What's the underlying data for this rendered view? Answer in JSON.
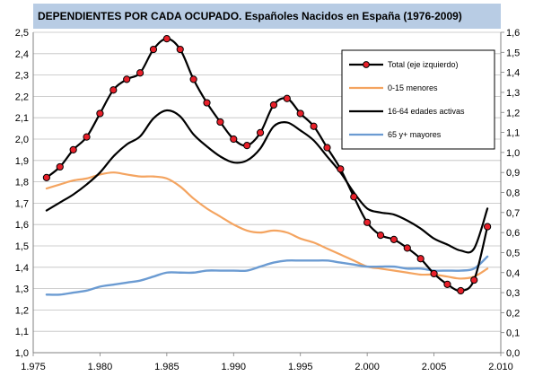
{
  "chart_data": {
    "type": "line",
    "title": "DEPENDIENTES POR CADA OCUPADO. Españoles Nacidos en España (1976-2009)",
    "colors": {
      "title_bg": "#b8cce4",
      "total": "#000000",
      "total_marker": "#e8202a",
      "menores": "#f4a460",
      "activas": "#000000",
      "mayores": "#6b9bd2"
    },
    "x_ticks": [
      "1.975",
      "1.980",
      "1.985",
      "1.990",
      "1.995",
      "2.000",
      "2.005",
      "2.010"
    ],
    "x_tick_values": [
      1975,
      1980,
      1985,
      1990,
      1995,
      2000,
      2005,
      2010
    ],
    "y_left_ticks": [
      "1,0",
      "1,1",
      "1,2",
      "1,3",
      "1,4",
      "1,5",
      "1,6",
      "1,7",
      "1,8",
      "1,9",
      "2,0",
      "2,1",
      "2,2",
      "2,3",
      "2,4",
      "2,5"
    ],
    "y_left_tick_values": [
      1.0,
      1.1,
      1.2,
      1.3,
      1.4,
      1.5,
      1.6,
      1.7,
      1.8,
      1.9,
      2.0,
      2.1,
      2.2,
      2.3,
      2.4,
      2.5
    ],
    "y_right_ticks": [
      "0,0",
      "0,1",
      "0,2",
      "0,3",
      "0,4",
      "0,5",
      "0,6",
      "0,7",
      "0,8",
      "0,9",
      "1,0",
      "1,1",
      "1,2",
      "1,3",
      "1,4",
      "1,5",
      "1,6"
    ],
    "y_right_tick_values": [
      0.0,
      0.1,
      0.2,
      0.3,
      0.4,
      0.5,
      0.6,
      0.7,
      0.8,
      0.9,
      1.0,
      1.1,
      1.2,
      1.3,
      1.4,
      1.5,
      1.6
    ],
    "xlim": [
      1975,
      2010
    ],
    "ylim_left": [
      1.0,
      2.5
    ],
    "ylim_right": [
      0.0,
      1.6
    ],
    "grid": true,
    "legend_placement": "top-right",
    "series": [
      {
        "name": "Total (eje izquierdo)",
        "axis": "left",
        "markers": true,
        "x": [
          1976,
          1977,
          1978,
          1979,
          1980,
          1981,
          1982,
          1983,
          1984,
          1985,
          1986,
          1987,
          1988,
          1989,
          1990,
          1991,
          1992,
          1993,
          1994,
          1995,
          1996,
          1997,
          1998,
          1999,
          2000,
          2001,
          2002,
          2003,
          2004,
          2005,
          2006,
          2007,
          2008,
          2009
        ],
        "y": [
          1.82,
          1.87,
          1.95,
          2.01,
          2.12,
          2.23,
          2.28,
          2.31,
          2.42,
          2.47,
          2.42,
          2.28,
          2.17,
          2.08,
          2.0,
          1.97,
          2.03,
          2.16,
          2.19,
          2.12,
          2.06,
          1.96,
          1.86,
          1.73,
          1.61,
          1.55,
          1.53,
          1.49,
          1.44,
          1.37,
          1.32,
          1.29,
          1.34,
          1.59
        ]
      },
      {
        "name": "0-15 menores",
        "axis": "right",
        "markers": false,
        "x": [
          1976,
          1977,
          1978,
          1979,
          1980,
          1981,
          1982,
          1983,
          1984,
          1985,
          1986,
          1987,
          1988,
          1989,
          1990,
          1991,
          1992,
          1993,
          1994,
          1995,
          1996,
          1997,
          1998,
          1999,
          2000,
          2001,
          2002,
          2003,
          2004,
          2005,
          2006,
          2007,
          2008,
          2009
        ],
        "y": [
          0.82,
          0.84,
          0.86,
          0.87,
          0.89,
          0.9,
          0.89,
          0.88,
          0.88,
          0.87,
          0.83,
          0.77,
          0.72,
          0.68,
          0.64,
          0.61,
          0.6,
          0.61,
          0.6,
          0.57,
          0.55,
          0.52,
          0.49,
          0.46,
          0.43,
          0.42,
          0.41,
          0.4,
          0.39,
          0.39,
          0.38,
          0.37,
          0.38,
          0.42
        ]
      },
      {
        "name": "16-64 edades activas",
        "axis": "right",
        "markers": false,
        "x": [
          1976,
          1977,
          1978,
          1979,
          1980,
          1981,
          1982,
          1983,
          1984,
          1985,
          1986,
          1987,
          1988,
          1989,
          1990,
          1991,
          1992,
          1993,
          1994,
          1995,
          1996,
          1997,
          1998,
          1999,
          2000,
          2001,
          2002,
          2003,
          2004,
          2005,
          2006,
          2007,
          2008,
          2009
        ],
        "y": [
          0.71,
          0.75,
          0.79,
          0.84,
          0.9,
          0.98,
          1.04,
          1.08,
          1.17,
          1.21,
          1.18,
          1.09,
          1.03,
          0.98,
          0.95,
          0.96,
          1.02,
          1.13,
          1.15,
          1.11,
          1.06,
          0.98,
          0.9,
          0.8,
          0.72,
          0.7,
          0.69,
          0.66,
          0.62,
          0.57,
          0.54,
          0.51,
          0.52,
          0.72
        ]
      },
      {
        "name": "65 y+ mayores",
        "axis": "right",
        "markers": false,
        "x": [
          1976,
          1977,
          1978,
          1979,
          1980,
          1981,
          1982,
          1983,
          1984,
          1985,
          1986,
          1987,
          1988,
          1989,
          1990,
          1991,
          1992,
          1993,
          1994,
          1995,
          1996,
          1997,
          1998,
          1999,
          2000,
          2001,
          2002,
          2003,
          2004,
          2005,
          2006,
          2007,
          2008,
          2009
        ],
        "y": [
          0.29,
          0.29,
          0.3,
          0.31,
          0.33,
          0.34,
          0.35,
          0.36,
          0.38,
          0.4,
          0.4,
          0.4,
          0.41,
          0.41,
          0.41,
          0.41,
          0.43,
          0.45,
          0.46,
          0.46,
          0.46,
          0.46,
          0.45,
          0.44,
          0.43,
          0.43,
          0.43,
          0.42,
          0.42,
          0.41,
          0.41,
          0.41,
          0.42,
          0.48
        ]
      }
    ]
  }
}
